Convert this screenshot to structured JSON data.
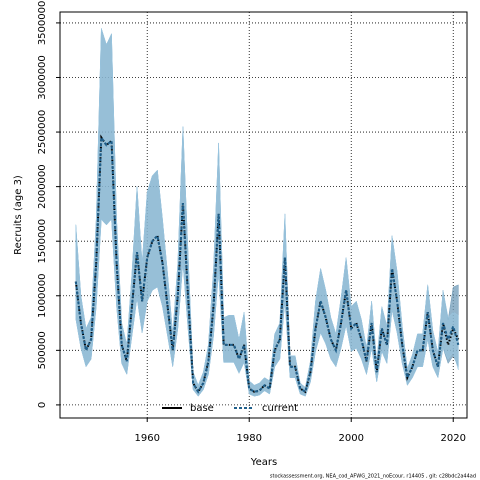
{
  "chart_data": {
    "type": "line",
    "x_label": "Years",
    "y_label": "Recruits (age 3)",
    "footer": "stockassessment.org, NEA_cod_AFWG_2021_noEcour, r14405 , git: c28bdc2a44ad",
    "x": [
      1946,
      1947,
      1948,
      1949,
      1950,
      1951,
      1952,
      1953,
      1954,
      1955,
      1956,
      1957,
      1958,
      1959,
      1960,
      1961,
      1962,
      1963,
      1964,
      1965,
      1966,
      1967,
      1968,
      1969,
      1970,
      1971,
      1972,
      1973,
      1974,
      1975,
      1976,
      1977,
      1978,
      1979,
      1980,
      1981,
      1982,
      1983,
      1984,
      1985,
      1986,
      1987,
      1988,
      1989,
      1990,
      1991,
      1992,
      1993,
      1994,
      1995,
      1996,
      1997,
      1998,
      1999,
      2000,
      2001,
      2002,
      2003,
      2004,
      2005,
      2006,
      2007,
      2008,
      2009,
      2010,
      2011,
      2012,
      2013,
      2014,
      2015,
      2016,
      2017,
      2018,
      2019,
      2020,
      2021
    ],
    "series": [
      {
        "name": "base",
        "color": "#000000",
        "band_color": "#6f9bb8",
        "values": [
          1130000,
          750000,
          500000,
          600000,
          1300000,
          2450000,
          2380000,
          2420000,
          1300000,
          550000,
          400000,
          900000,
          1400000,
          950000,
          1350000,
          1500000,
          1550000,
          1300000,
          900000,
          500000,
          1000000,
          1850000,
          1000000,
          200000,
          120000,
          200000,
          400000,
          900000,
          1750000,
          550000,
          550000,
          550000,
          420000,
          550000,
          150000,
          120000,
          130000,
          180000,
          150000,
          500000,
          600000,
          1350000,
          350000,
          350000,
          150000,
          120000,
          300000,
          700000,
          950000,
          800000,
          600000,
          500000,
          750000,
          1050000,
          700000,
          750000,
          600000,
          400000,
          750000,
          300000,
          700000,
          550000,
          1250000,
          950000,
          550000,
          250000,
          350000,
          500000,
          500000,
          850000,
          500000,
          350000,
          750000,
          550000,
          700000,
          600000
        ],
        "upper": [
          1650000,
          1000000,
          700000,
          800000,
          1700000,
          3450000,
          3300000,
          3400000,
          1700000,
          750000,
          550000,
          1200000,
          2000000,
          1300000,
          1950000,
          2100000,
          2150000,
          1700000,
          1200000,
          650000,
          1300000,
          2550000,
          1400000,
          300000,
          180000,
          300000,
          550000,
          1250000,
          2400000,
          800000,
          820000,
          820000,
          600000,
          850000,
          220000,
          180000,
          200000,
          250000,
          220000,
          650000,
          750000,
          1750000,
          450000,
          450000,
          200000,
          160000,
          400000,
          950000,
          1250000,
          1050000,
          800000,
          650000,
          980000,
          1350000,
          900000,
          950000,
          780000,
          520000,
          950000,
          400000,
          900000,
          720000,
          1550000,
          1220000,
          720000,
          330000,
          460000,
          650000,
          650000,
          1100000,
          680000,
          480000,
          1050000,
          780000,
          1080000,
          1100000
        ],
        "lower": [
          790000,
          520000,
          350000,
          420000,
          900000,
          1700000,
          1650000,
          1700000,
          900000,
          380000,
          280000,
          630000,
          980000,
          660000,
          950000,
          1050000,
          1080000,
          900000,
          630000,
          350000,
          700000,
          1300000,
          700000,
          140000,
          80000,
          140000,
          280000,
          630000,
          1220000,
          390000,
          390000,
          390000,
          290000,
          390000,
          100000,
          80000,
          90000,
          130000,
          100000,
          350000,
          420000,
          950000,
          250000,
          250000,
          100000,
          80000,
          210000,
          490000,
          660000,
          560000,
          420000,
          350000,
          520000,
          730000,
          490000,
          520000,
          420000,
          280000,
          520000,
          210000,
          490000,
          380000,
          870000,
          660000,
          380000,
          180000,
          250000,
          350000,
          350000,
          600000,
          350000,
          250000,
          520000,
          380000,
          450000,
          350000
        ]
      },
      {
        "name": "current",
        "color": "#1f5f8b",
        "band_color": "#9cc9e4",
        "values": [
          1130000,
          750000,
          500000,
          600000,
          1300000,
          2450000,
          2380000,
          2420000,
          1300000,
          550000,
          400000,
          900000,
          1400000,
          950000,
          1350000,
          1500000,
          1550000,
          1300000,
          900000,
          500000,
          1000000,
          1850000,
          1000000,
          200000,
          120000,
          200000,
          400000,
          900000,
          1750000,
          550000,
          550000,
          550000,
          420000,
          550000,
          150000,
          120000,
          130000,
          180000,
          150000,
          500000,
          600000,
          1350000,
          350000,
          350000,
          150000,
          120000,
          300000,
          700000,
          950000,
          800000,
          600000,
          500000,
          750000,
          1050000,
          700000,
          750000,
          600000,
          400000,
          750000,
          300000,
          700000,
          550000,
          1250000,
          950000,
          550000,
          250000,
          350000,
          500000,
          500000,
          850000,
          500000,
          350000,
          750000,
          600000,
          720000,
          550000
        ],
        "upper": [
          1650000,
          1000000,
          700000,
          800000,
          1700000,
          3450000,
          3300000,
          3400000,
          1700000,
          750000,
          550000,
          1200000,
          2000000,
          1300000,
          1950000,
          2100000,
          2150000,
          1700000,
          1200000,
          650000,
          1300000,
          2550000,
          1400000,
          300000,
          180000,
          300000,
          550000,
          1250000,
          2400000,
          800000,
          820000,
          820000,
          600000,
          850000,
          220000,
          180000,
          200000,
          250000,
          220000,
          650000,
          750000,
          1750000,
          450000,
          450000,
          200000,
          160000,
          400000,
          950000,
          1250000,
          1050000,
          800000,
          650000,
          980000,
          1350000,
          900000,
          950000,
          780000,
          520000,
          950000,
          400000,
          900000,
          720000,
          1550000,
          1220000,
          720000,
          330000,
          460000,
          650000,
          650000,
          1100000,
          680000,
          480000,
          1050000,
          800000,
          850000,
          820000
        ],
        "lower": [
          790000,
          520000,
          350000,
          420000,
          900000,
          1700000,
          1650000,
          1700000,
          900000,
          380000,
          280000,
          630000,
          980000,
          660000,
          950000,
          1050000,
          1080000,
          900000,
          630000,
          350000,
          700000,
          1300000,
          700000,
          140000,
          80000,
          140000,
          280000,
          630000,
          1220000,
          390000,
          390000,
          390000,
          290000,
          390000,
          100000,
          80000,
          90000,
          130000,
          100000,
          350000,
          420000,
          950000,
          250000,
          250000,
          100000,
          80000,
          210000,
          490000,
          660000,
          560000,
          420000,
          350000,
          520000,
          730000,
          490000,
          520000,
          420000,
          280000,
          520000,
          210000,
          490000,
          380000,
          870000,
          660000,
          380000,
          180000,
          250000,
          350000,
          350000,
          600000,
          350000,
          250000,
          520000,
          420000,
          480000,
          320000
        ]
      }
    ],
    "xlim": [
      1942.9,
      2022.7
    ],
    "ylim": [
      -120000,
      3600000
    ],
    "xticks": [
      1960,
      1980,
      2000,
      2020
    ],
    "yticks": [
      0,
      500000,
      1000000,
      1500000,
      2000000,
      2500000,
      3000000,
      3500000
    ],
    "grid": true,
    "legend": "bottom"
  }
}
